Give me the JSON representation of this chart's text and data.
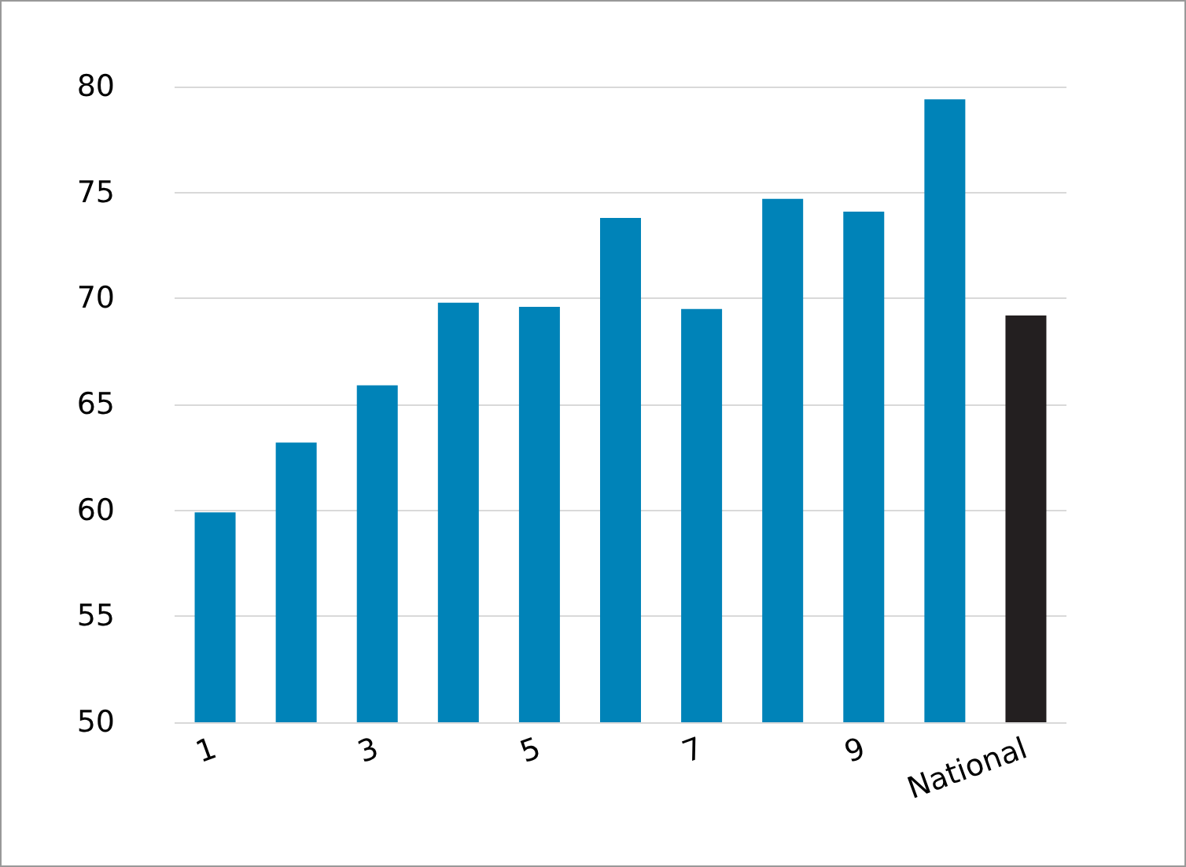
{
  "chart_data": {
    "type": "bar",
    "categories": [
      "1",
      null,
      "3",
      null,
      "5",
      null,
      "7",
      null,
      "9",
      null,
      "National"
    ],
    "values": [
      59.9,
      63.2,
      65.9,
      69.8,
      69.6,
      73.8,
      69.5,
      74.7,
      74.1,
      79.4,
      69.2
    ],
    "colors": [
      "#0083b8",
      "#0083b8",
      "#0083b8",
      "#0083b8",
      "#0083b8",
      "#0083b8",
      "#0083b8",
      "#0083b8",
      "#0083b8",
      "#0083b8",
      "#231f20"
    ],
    "ylim": [
      50,
      80
    ],
    "yticks": [
      50,
      55,
      60,
      65,
      70,
      75,
      80
    ],
    "grid": "y"
  }
}
